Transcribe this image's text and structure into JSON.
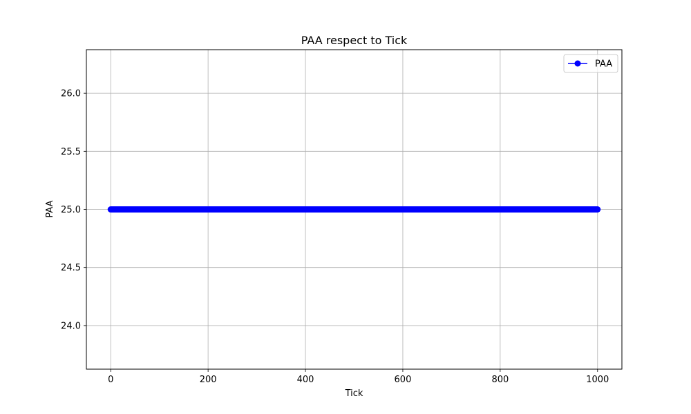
{
  "chart_data": {
    "type": "line",
    "title": "PAA respect to Tick",
    "xlabel": "Tick",
    "ylabel": "PAA",
    "xlim": [
      -50,
      1050
    ],
    "ylim": [
      23.625,
      26.375
    ],
    "x_ticks": [
      0,
      200,
      400,
      600,
      800,
      1000
    ],
    "x_tick_labels": [
      "0",
      "200",
      "400",
      "600",
      "800",
      "1000"
    ],
    "y_ticks": [
      24.0,
      24.5,
      25.0,
      25.5,
      26.0
    ],
    "y_tick_labels": [
      "24.0",
      "24.5",
      "25.0",
      "25.5",
      "26.0"
    ],
    "grid": true,
    "legend_position": "upper right",
    "series": [
      {
        "name": "PAA",
        "color": "#0000ff",
        "marker": "circle",
        "x_range": {
          "start": 0,
          "end": 1000,
          "step": 1
        },
        "constant_y": 25.0
      }
    ]
  }
}
